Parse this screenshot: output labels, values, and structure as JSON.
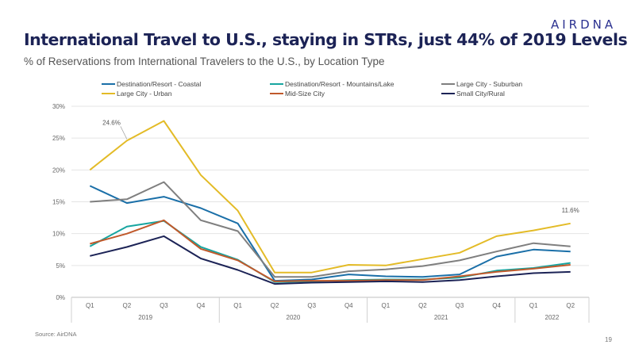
{
  "logo": "AIRDNA",
  "title": "International Travel to U.S., staying in STRs, just 44% of 2019 Levels",
  "subtitle": "% of Reservations from International Travelers to the U.S., by Location Type",
  "source": "Source: AirDNA",
  "page_number": "19",
  "chart_data": {
    "type": "line",
    "categories": [
      "Q1",
      "Q2",
      "Q3",
      "Q4",
      "Q1",
      "Q2",
      "Q3",
      "Q4",
      "Q1",
      "Q2",
      "Q3",
      "Q4",
      "Q1",
      "Q2"
    ],
    "years": [
      {
        "label": "2019",
        "start": 0,
        "end": 3
      },
      {
        "label": "2020",
        "start": 4,
        "end": 7
      },
      {
        "label": "2021",
        "start": 8,
        "end": 11
      },
      {
        "label": "2022",
        "start": 12,
        "end": 13
      }
    ],
    "ylim": [
      0,
      30
    ],
    "yticks": [
      0,
      5,
      10,
      15,
      20,
      25,
      30
    ],
    "ytick_labels": [
      "0%",
      "5%",
      "10%",
      "15%",
      "20%",
      "25%",
      "30%"
    ],
    "grid": true,
    "legend_position": "top",
    "series": [
      {
        "name": "Destination/Resort - Coastal",
        "color": "#1a6fa8",
        "values": [
          17.5,
          14.8,
          15.8,
          14.0,
          11.6,
          2.6,
          2.8,
          3.6,
          3.3,
          3.2,
          3.6,
          6.4,
          7.5,
          7.2
        ]
      },
      {
        "name": "Destination/Resort - Mountains/Lake",
        "color": "#17a5a0",
        "values": [
          8.0,
          11.1,
          12.0,
          7.9,
          5.9,
          2.4,
          2.5,
          2.7,
          2.8,
          2.8,
          3.1,
          4.2,
          4.6,
          5.4
        ]
      },
      {
        "name": "Large City - Suburban",
        "color": "#7f7f7f",
        "values": [
          15.0,
          15.4,
          18.1,
          12.1,
          10.4,
          3.2,
          3.2,
          4.1,
          4.4,
          4.9,
          5.8,
          7.2,
          8.5,
          8.0
        ]
      },
      {
        "name": "Large City - Urban",
        "color": "#e3bb27",
        "values": [
          20.0,
          24.6,
          27.7,
          19.2,
          13.6,
          3.9,
          3.9,
          5.1,
          5.0,
          6.0,
          7.0,
          9.6,
          10.5,
          11.6
        ]
      },
      {
        "name": "Mid-Size City",
        "color": "#c0592b",
        "values": [
          8.4,
          10.0,
          12.1,
          7.6,
          5.8,
          2.5,
          2.6,
          2.6,
          2.7,
          2.7,
          3.3,
          4.0,
          4.5,
          5.1
        ]
      },
      {
        "name": "Small City/Rural",
        "color": "#1c2356",
        "values": [
          6.5,
          7.9,
          9.6,
          6.1,
          4.3,
          2.1,
          2.3,
          2.4,
          2.5,
          2.4,
          2.7,
          3.3,
          3.8,
          4.0
        ]
      }
    ],
    "annotations": [
      {
        "series": 3,
        "index": 1,
        "text": "24.6%"
      },
      {
        "series": 3,
        "index": 13,
        "text": "11.6%"
      }
    ]
  }
}
